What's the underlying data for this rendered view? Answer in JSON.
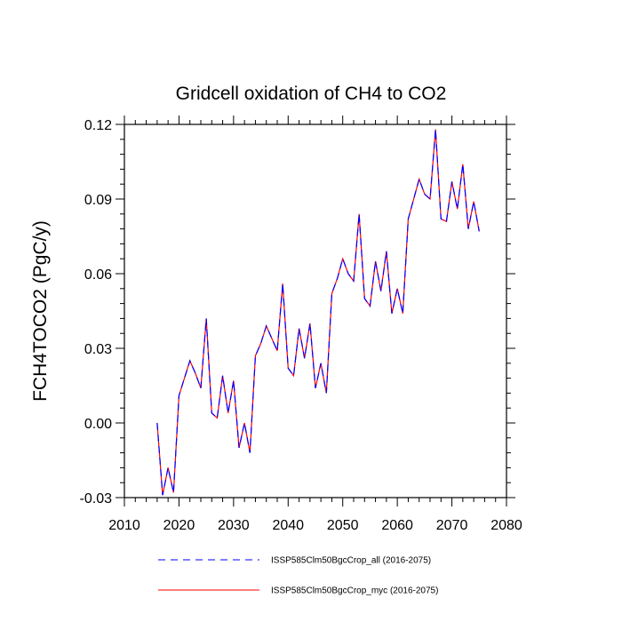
{
  "chart_data": {
    "type": "line",
    "title": "Gridcell oxidation of CH4 to CO2",
    "xlabel": "",
    "ylabel": "FCH4TOCO2  (PgC/y)",
    "xlim": [
      2010,
      2080
    ],
    "ylim": [
      -0.03,
      0.12
    ],
    "x_ticks": [
      "2010",
      "2020",
      "2030",
      "2040",
      "2050",
      "2060",
      "2070",
      "2080"
    ],
    "y_ticks": [
      "-0.03",
      "0.00",
      "0.03",
      "0.06",
      "0.09",
      "0.12"
    ],
    "grid": false,
    "legend_position": "bottom",
    "x": [
      2016,
      2017,
      2018,
      2019,
      2020,
      2021,
      2022,
      2023,
      2024,
      2025,
      2026,
      2027,
      2028,
      2029,
      2030,
      2031,
      2032,
      2033,
      2034,
      2035,
      2036,
      2037,
      2038,
      2039,
      2040,
      2041,
      2042,
      2043,
      2044,
      2045,
      2046,
      2047,
      2048,
      2049,
      2050,
      2051,
      2052,
      2053,
      2054,
      2055,
      2056,
      2057,
      2058,
      2059,
      2060,
      2061,
      2062,
      2063,
      2064,
      2065,
      2066,
      2067,
      2068,
      2069,
      2070,
      2071,
      2072,
      2073,
      2074,
      2075
    ],
    "series": [
      {
        "name": "ISSP585Clm50BgcCrop_all (2016-2075)",
        "color": "#0000ff",
        "dash": "dashed",
        "values": [
          0.0,
          -0.029,
          -0.018,
          -0.028,
          0.011,
          0.018,
          0.025,
          0.02,
          0.014,
          0.042,
          0.004,
          0.002,
          0.019,
          0.004,
          0.017,
          -0.01,
          0.0,
          -0.012,
          0.027,
          0.032,
          0.039,
          0.034,
          0.029,
          0.056,
          0.022,
          0.019,
          0.038,
          0.026,
          0.04,
          0.014,
          0.024,
          0.012,
          0.052,
          0.058,
          0.066,
          0.06,
          0.057,
          0.084,
          0.05,
          0.047,
          0.065,
          0.053,
          0.069,
          0.044,
          0.054,
          0.044,
          0.082,
          0.09,
          0.098,
          0.092,
          0.09,
          0.118,
          0.082,
          0.081,
          0.097,
          0.086,
          0.104,
          0.078,
          0.089,
          0.077
        ]
      },
      {
        "name": "ISSP585Clm50BgcCrop_myc (2016-2075)",
        "color": "#ff0000",
        "dash": "solid",
        "values": [
          0.0,
          -0.029,
          -0.018,
          -0.028,
          0.011,
          0.018,
          0.025,
          0.02,
          0.014,
          0.042,
          0.004,
          0.002,
          0.019,
          0.004,
          0.017,
          -0.01,
          0.0,
          -0.012,
          0.027,
          0.032,
          0.039,
          0.034,
          0.029,
          0.056,
          0.022,
          0.019,
          0.038,
          0.026,
          0.04,
          0.014,
          0.024,
          0.012,
          0.052,
          0.058,
          0.066,
          0.06,
          0.057,
          0.084,
          0.05,
          0.047,
          0.065,
          0.053,
          0.069,
          0.044,
          0.054,
          0.044,
          0.082,
          0.09,
          0.098,
          0.092,
          0.09,
          0.118,
          0.082,
          0.081,
          0.097,
          0.086,
          0.104,
          0.078,
          0.089,
          0.077
        ]
      }
    ]
  }
}
